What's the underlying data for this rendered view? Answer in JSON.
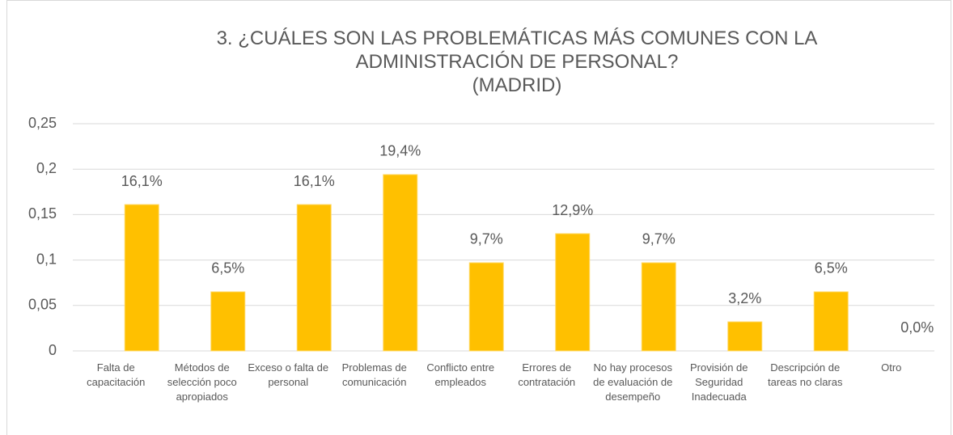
{
  "chart_data": {
    "type": "bar",
    "title": "3.    ¿CUÁLES SON LAS PROBLEMÁTICAS MÁS COMUNES CON LA ADMINISTRACIÓN DE PERSONAL?",
    "subtitle": "(MADRID)",
    "categories": [
      "Falta de capacitación",
      "Métodos de selección poco apropiados",
      "Exceso  o falta de personal",
      "Problemas de comunicación",
      "Conflicto entre empleados",
      "Errores de contratación",
      "No hay procesos de evaluación de desempeño",
      "Provisión de Seguridad Inadecuada",
      "Descripción de tareas no claras",
      "Otro"
    ],
    "values": [
      0.161,
      0.065,
      0.161,
      0.194,
      0.097,
      0.129,
      0.097,
      0.032,
      0.065,
      0.0
    ],
    "value_labels": [
      "16,1%",
      "6,5%",
      "16,1%",
      "19,4%",
      "9,7%",
      "12,9%",
      "9,7%",
      "3,2%",
      "6,5%",
      "0,0%"
    ],
    "color": "#ffc000",
    "ylim": [
      0,
      0.25
    ],
    "yticks": [
      0,
      {
        "value": 0.05,
        "label": "0,05"
      },
      {
        "value": 0.1,
        "label": "0,1"
      },
      {
        "value": 0.15,
        "label": "0,15"
      },
      {
        "value": 0.2,
        "label": "0,2"
      },
      {
        "value": 0.25,
        "label": "0,25"
      }
    ],
    "grid": true
  }
}
